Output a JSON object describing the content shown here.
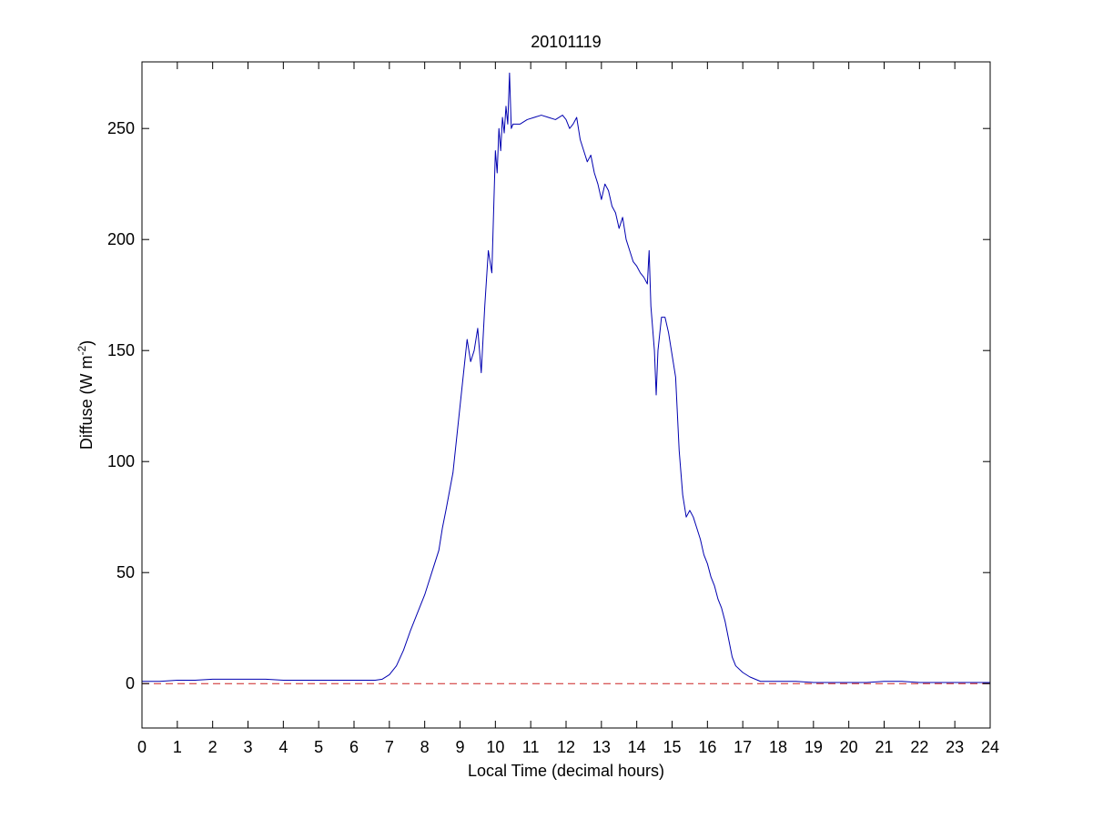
{
  "chart_data": {
    "type": "line",
    "title": "20101119",
    "xlabel": "Local Time (decimal hours)",
    "ylabel_main": "Diffuse (W m",
    "ylabel_sup": "-2",
    "ylabel_close": ")",
    "xlim": [
      0,
      24
    ],
    "ylim": [
      -20,
      280
    ],
    "xticks": [
      0,
      1,
      2,
      3,
      4,
      5,
      6,
      7,
      8,
      9,
      10,
      11,
      12,
      13,
      14,
      15,
      16,
      17,
      18,
      19,
      20,
      21,
      22,
      23,
      24
    ],
    "yticks": [
      0,
      50,
      100,
      150,
      200,
      250
    ],
    "grid": false,
    "legend": "none",
    "colors": {
      "series": "#0000b0",
      "reference": "#cc2222",
      "axes": "#000000"
    },
    "series": [
      {
        "x": [
          0,
          0.5,
          1,
          1.5,
          2,
          2.5,
          3,
          3.5,
          4,
          4.5,
          5,
          5.5,
          6,
          6.3,
          6.6,
          6.8,
          7,
          7.2,
          7.4,
          7.6,
          7.8,
          8,
          8.2,
          8.4,
          8.5,
          8.6,
          8.8,
          8.9,
          9,
          9.1,
          9.2,
          9.3,
          9.4,
          9.5,
          9.6,
          9.7,
          9.8,
          9.9,
          10,
          10.05,
          10.1,
          10.15,
          10.2,
          10.25,
          10.3,
          10.35,
          10.4,
          10.45,
          10.5,
          10.7,
          10.9,
          11.1,
          11.3,
          11.5,
          11.7,
          11.9,
          12,
          12.1,
          12.2,
          12.3,
          12.4,
          12.5,
          12.6,
          12.7,
          12.8,
          12.9,
          13,
          13.1,
          13.2,
          13.3,
          13.4,
          13.5,
          13.6,
          13.7,
          13.8,
          13.9,
          14,
          14.1,
          14.2,
          14.3,
          14.35,
          14.4,
          14.45,
          14.5,
          14.55,
          14.6,
          14.7,
          14.8,
          14.9,
          15,
          15.1,
          15.2,
          15.3,
          15.4,
          15.5,
          15.6,
          15.7,
          15.8,
          15.9,
          16,
          16.1,
          16.2,
          16.3,
          16.4,
          16.5,
          16.6,
          16.7,
          16.8,
          17,
          17.2,
          17.5,
          18,
          18.5,
          19,
          19.5,
          20,
          20.5,
          21,
          21.5,
          22,
          22.5,
          23,
          23.5,
          24
        ],
        "values": [
          1,
          1,
          1.5,
          1.5,
          2,
          2,
          2,
          2,
          1.5,
          1.5,
          1.5,
          1.5,
          1.5,
          1.5,
          1.5,
          2,
          4,
          8,
          15,
          24,
          32,
          40,
          50,
          60,
          70,
          78,
          95,
          110,
          125,
          140,
          155,
          145,
          150,
          160,
          140,
          170,
          195,
          185,
          240,
          230,
          250,
          240,
          255,
          248,
          260,
          252,
          275,
          250,
          252,
          252,
          254,
          255,
          256,
          255,
          254,
          256,
          254,
          250,
          252,
          255,
          245,
          240,
          235,
          238,
          230,
          225,
          218,
          225,
          222,
          215,
          212,
          205,
          210,
          200,
          195,
          190,
          188,
          185,
          183,
          180,
          195,
          170,
          160,
          150,
          130,
          150,
          165,
          165,
          158,
          148,
          138,
          105,
          85,
          75,
          78,
          75,
          70,
          65,
          58,
          54,
          48,
          44,
          38,
          34,
          28,
          20,
          12,
          8,
          5,
          3,
          1,
          1,
          1,
          0.5,
          0.5,
          0.5,
          0.5,
          1,
          1,
          0.5,
          0.5,
          0.5,
          0.5,
          0.5
        ]
      },
      {
        "x": [
          0,
          24
        ],
        "values": [
          0,
          0
        ]
      }
    ]
  }
}
